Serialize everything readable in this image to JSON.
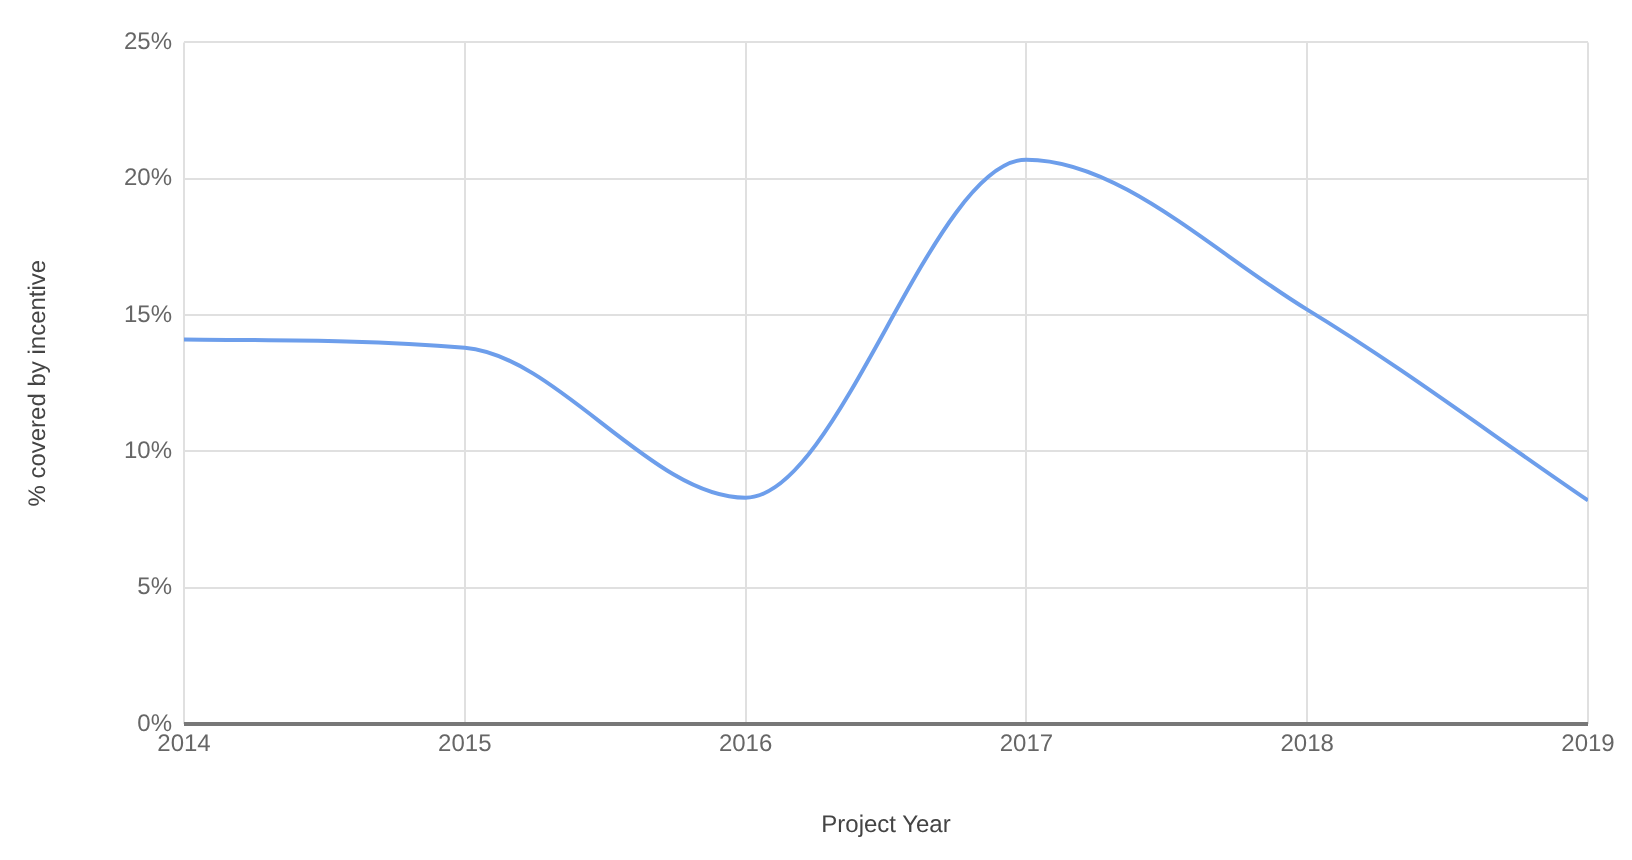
{
  "chart_data": {
    "type": "line",
    "xlabel": "Project Year",
    "ylabel": "% covered by incentive",
    "x": [
      2014,
      2015,
      2016,
      2017,
      2018,
      2019
    ],
    "series": [
      {
        "color": "#6d9eeb",
        "values": [
          14.1,
          13.8,
          8.3,
          20.7,
          15.2,
          8.2
        ]
      }
    ],
    "xlim": [
      2014,
      2019
    ],
    "xticks": [
      2014,
      2015,
      2016,
      2017,
      2018,
      2019
    ],
    "ylim": [
      0,
      25
    ],
    "yticks": [
      {
        "value": 0,
        "label": "0%"
      },
      {
        "value": 5,
        "label": "5%"
      },
      {
        "value": 10,
        "label": "10%"
      },
      {
        "value": 15,
        "label": "15%"
      },
      {
        "value": 20,
        "label": "20%"
      },
      {
        "value": 25,
        "label": "25%"
      }
    ],
    "grid": true,
    "legend": false,
    "marker": "none",
    "line_style": "solid"
  }
}
